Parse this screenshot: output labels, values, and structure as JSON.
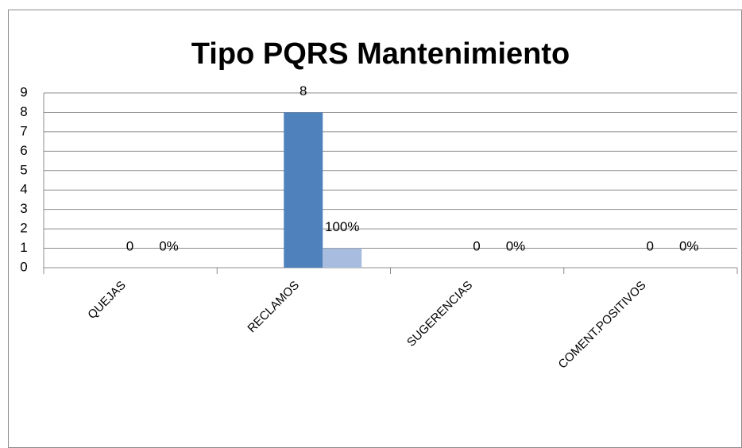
{
  "chart_data": {
    "type": "bar",
    "title": "Tipo PQRS Mantenimiento",
    "categories": [
      "QUEJAS",
      "RECLAMOS",
      "SUGERENCIAS",
      "COMENT.POSITIVOS"
    ],
    "series": [
      {
        "color": "#4f81bd",
        "values": [
          0,
          8,
          0,
          0
        ]
      },
      {
        "color": "#a7bcdf",
        "values": [
          0,
          1,
          0,
          0
        ],
        "value_labels": [
          "0%",
          "100%",
          "0%",
          "0%"
        ]
      }
    ],
    "ylim": [
      0,
      9
    ],
    "yticks": [
      0,
      1,
      2,
      3,
      4,
      5,
      6,
      7,
      8,
      9
    ],
    "grid": true
  }
}
